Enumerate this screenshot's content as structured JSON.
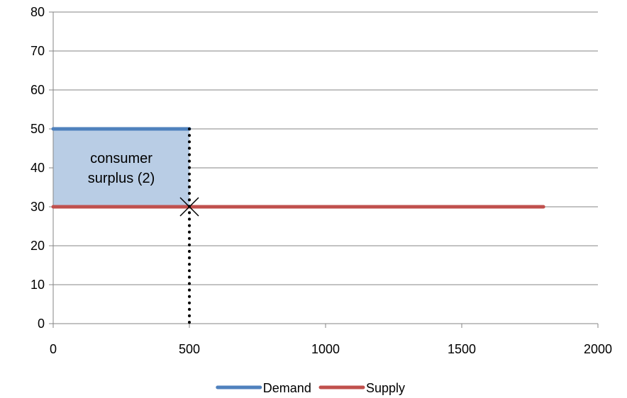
{
  "chart_data": {
    "type": "line",
    "title": "",
    "xlabel": "",
    "ylabel": "",
    "xlim": [
      0,
      2000
    ],
    "ylim": [
      0,
      80
    ],
    "x_ticks": [
      0,
      500,
      1000,
      1500,
      2000
    ],
    "y_ticks": [
      0,
      10,
      20,
      30,
      40,
      50,
      60,
      70,
      80
    ],
    "grid": "horizontal",
    "legend_position": "bottom",
    "series": [
      {
        "name": "Demand",
        "color": "#4F81BD",
        "points": [
          {
            "x": 0,
            "y": 50
          },
          {
            "x": 500,
            "y": 50
          }
        ]
      },
      {
        "name": "Supply",
        "color": "#C0504D",
        "points": [
          {
            "x": 0,
            "y": 30
          },
          {
            "x": 1800,
            "y": 30
          }
        ]
      }
    ],
    "shaded_region": {
      "x_from": 0,
      "x_to": 500,
      "y_from": 30,
      "y_to": 50,
      "fill_color": "#B9CDE5"
    },
    "annotations": [
      {
        "lines": [
          "consumer",
          "surplus (2)"
        ]
      }
    ],
    "equilibrium": {
      "x": 500,
      "y": 30,
      "marker": "x"
    },
    "reference_line": {
      "x": 500,
      "y_from": 0,
      "y_to": 50,
      "style": "dotted"
    }
  }
}
